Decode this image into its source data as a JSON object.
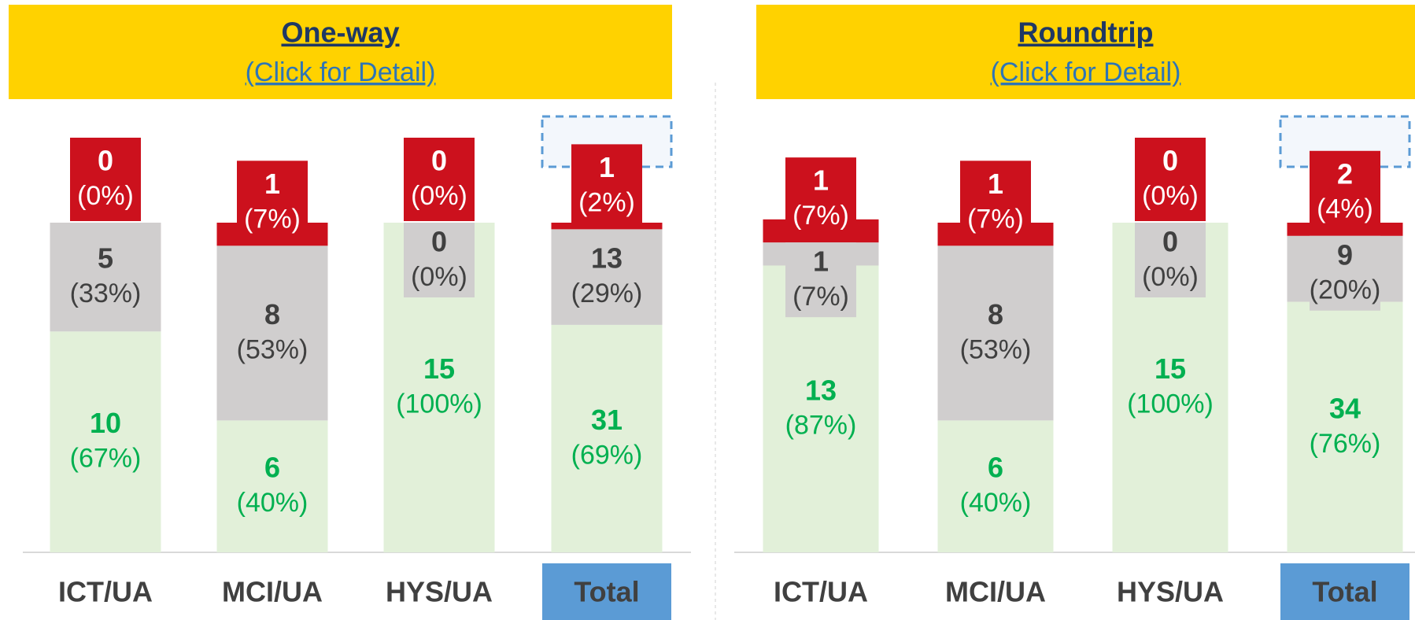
{
  "chart_data": [
    {
      "type": "bar",
      "stacked": true,
      "title": "One-way",
      "link": "(Click for Detail)",
      "categories": [
        "ICT/UA",
        "MCI/UA",
        "HYS/UA",
        "Total"
      ],
      "ylim": [
        0,
        100
      ],
      "series": [
        {
          "color": "#e2f0d9",
          "label_color": "#00b050",
          "values": [
            10,
            6,
            15,
            31
          ],
          "shares": [
            67,
            40,
            100,
            69
          ],
          "share_labels": [
            "(67%)",
            "(40%)",
            "(100%)",
            "(69%)"
          ]
        },
        {
          "color": "#d0cece",
          "label_color": "#404040",
          "values": [
            5,
            8,
            0,
            13
          ],
          "shares": [
            33,
            53,
            0,
            29
          ],
          "share_labels": [
            "(33%)",
            "(53%)",
            "(0%)",
            "(29%)"
          ]
        },
        {
          "color": "#cc111d",
          "label_color": "#ffffff",
          "values": [
            0,
            1,
            0,
            1
          ],
          "shares": [
            0,
            7,
            0,
            2
          ],
          "share_labels": [
            "(0%)",
            "(7%)",
            "(0%)",
            "(2%)"
          ]
        }
      ]
    },
    {
      "type": "bar",
      "stacked": true,
      "title": "Roundtrip",
      "link": "(Click for Detail)",
      "categories": [
        "ICT/UA",
        "MCI/UA",
        "HYS/UA",
        "Total"
      ],
      "ylim": [
        0,
        100
      ],
      "series": [
        {
          "color": "#e2f0d9",
          "label_color": "#00b050",
          "values": [
            13,
            6,
            15,
            34
          ],
          "shares": [
            87,
            40,
            100,
            76
          ],
          "share_labels": [
            "(87%)",
            "(40%)",
            "(100%)",
            "(76%)"
          ]
        },
        {
          "color": "#d0cece",
          "label_color": "#404040",
          "values": [
            1,
            8,
            0,
            9
          ],
          "shares": [
            7,
            53,
            0,
            20
          ],
          "share_labels": [
            "(7%)",
            "(53%)",
            "(0%)",
            "(20%)"
          ]
        },
        {
          "color": "#cc111d",
          "label_color": "#ffffff",
          "values": [
            1,
            1,
            0,
            2
          ],
          "shares": [
            7,
            7,
            0,
            4
          ],
          "share_labels": [
            "(7%)",
            "(7%)",
            "(0%)",
            "(4%)"
          ]
        }
      ]
    }
  ]
}
